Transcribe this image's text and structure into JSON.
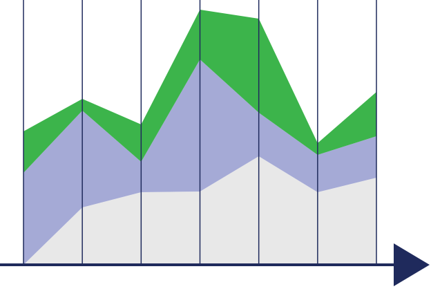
{
  "chart_data": {
    "type": "area",
    "stacked": true,
    "grid": true,
    "ylim": [
      0,
      369
    ],
    "series": [
      {
        "color": "#e8e8e8",
        "values": [
          0,
          83,
          105,
          106,
          157,
          105,
          126
        ]
      },
      {
        "color": "#a5aad6",
        "values": [
          133,
          140,
          44,
          191,
          63,
          54,
          60
        ]
      },
      {
        "color": "#3cb44b",
        "values": [
          60,
          17,
          54,
          72,
          136,
          17,
          64
        ]
      }
    ]
  }
}
